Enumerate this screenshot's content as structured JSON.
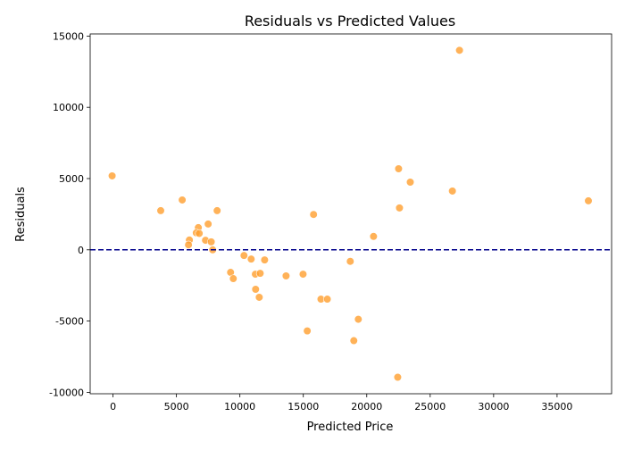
{
  "chart_data": {
    "type": "scatter",
    "title": "Residuals vs Predicted Values",
    "xlabel": "Predicted Price",
    "ylabel": "Residuals",
    "xlim": [
      -1800,
      39300
    ],
    "ylim": [
      -10100,
      15150
    ],
    "xticks": [
      0,
      5000,
      10000,
      15000,
      20000,
      25000,
      30000,
      35000
    ],
    "yticks": [
      -10000,
      -5000,
      0,
      5000,
      10000,
      15000
    ],
    "grid": false,
    "point_color": "#ff9f2e",
    "reference_line": {
      "y": 0,
      "color": "#00008b",
      "style": "dashed"
    },
    "points": [
      [
        -70,
        5190
      ],
      [
        3760,
        2750
      ],
      [
        5455,
        3500
      ],
      [
        8207,
        2750
      ],
      [
        6725,
        1560
      ],
      [
        7500,
        1810
      ],
      [
        6563,
        1190
      ],
      [
        6795,
        1150
      ],
      [
        6020,
        690
      ],
      [
        5950,
        350
      ],
      [
        7290,
        670
      ],
      [
        7740,
        560
      ],
      [
        7855,
        0
      ],
      [
        10325,
        -400
      ],
      [
        10890,
        -650
      ],
      [
        11950,
        -710
      ],
      [
        9267,
        -1580
      ],
      [
        9480,
        -2020
      ],
      [
        11220,
        -1710
      ],
      [
        11600,
        -1650
      ],
      [
        13640,
        -1830
      ],
      [
        14980,
        -1710
      ],
      [
        15807,
        2480
      ],
      [
        11240,
        -2770
      ],
      [
        11525,
        -3330
      ],
      [
        16390,
        -3460
      ],
      [
        16890,
        -3460
      ],
      [
        22510,
        5690
      ],
      [
        23430,
        4750
      ],
      [
        26750,
        4125
      ],
      [
        22580,
        2940
      ],
      [
        20535,
        940
      ],
      [
        18700,
        -810
      ],
      [
        19335,
        -4875
      ],
      [
        15310,
        -5690
      ],
      [
        18980,
        -6375
      ],
      [
        22440,
        -8940
      ],
      [
        27310,
        14000
      ],
      [
        37470,
        3440
      ]
    ]
  }
}
